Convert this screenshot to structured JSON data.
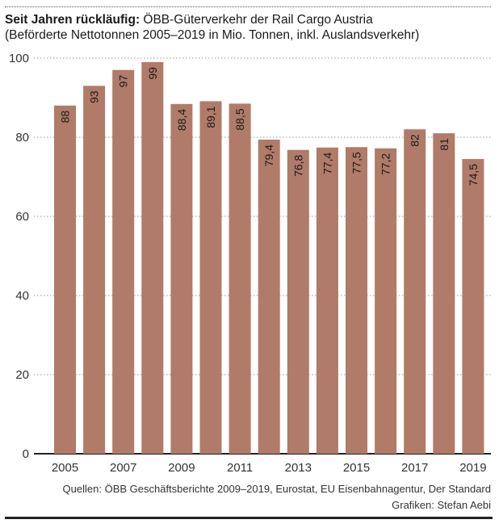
{
  "header": {
    "title_bold": "Seit Jahren rückläufig:",
    "title_rest": " ÖBB-Güterverkehr der Rail Cargo Austria",
    "subtitle": "(Beförderte Nettotonnen 2005–2019 in Mio. Tonnen, inkl. Auslandsverkehr)"
  },
  "footer": {
    "source": "Quellen: ÖBB Geschäftsberichte 2009–2019, Eurostat, EU Eisenbahnagentur, Der Standard",
    "credit": "Grafiken: Stefan Aebi"
  },
  "colors": {
    "bar": "#b07b68",
    "label": "#1a1a1a",
    "grid": "#999999",
    "axis": "#222222"
  },
  "chart_data": {
    "type": "bar",
    "categories": [
      "2005",
      "2006",
      "2007",
      "2008",
      "2009",
      "2010",
      "2011",
      "2012",
      "2013",
      "2014",
      "2015",
      "2016",
      "2017",
      "2018",
      "2019"
    ],
    "values": [
      88,
      93,
      97,
      99,
      88.4,
      89.1,
      88.5,
      79.4,
      76.8,
      77.4,
      77.5,
      77.2,
      82,
      81,
      74.5
    ],
    "data_labels": [
      "88",
      "93",
      "97",
      "99",
      "88,4",
      "89,1",
      "88,5",
      "79,4",
      "76,8",
      "77,4",
      "77,5",
      "77,2",
      "82",
      "81",
      "74,5"
    ],
    "x_tick_labels": [
      "2005",
      "",
      "2007",
      "",
      "2009",
      "",
      "2011",
      "",
      "2013",
      "",
      "2015",
      "",
      "2017",
      "",
      "2019"
    ],
    "y_ticks": [
      0,
      20,
      40,
      60,
      80,
      100
    ],
    "y_tick_labels": [
      "0",
      "20",
      "40",
      "60",
      "80",
      "100"
    ],
    "ylim": [
      0,
      100
    ],
    "grid": true,
    "title": "Seit Jahren rückläufig: ÖBB-Güterverkehr der Rail Cargo Austria",
    "subtitle": "(Beförderte Nettotonnen 2005–2019 in Mio. Tonnen, inkl. Auslandsverkehr)",
    "xlabel": "",
    "ylabel": ""
  }
}
